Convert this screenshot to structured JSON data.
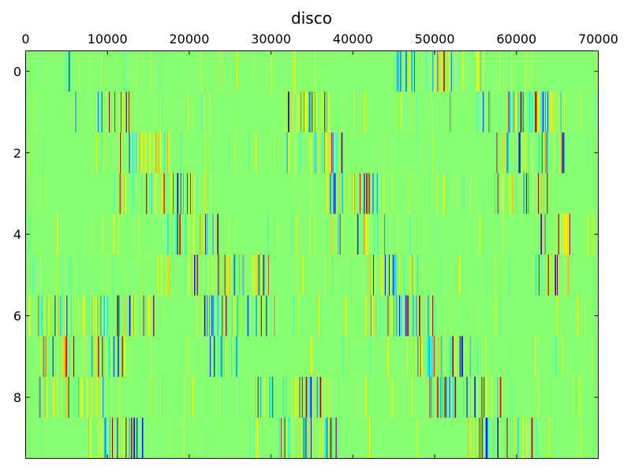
{
  "chart_data": {
    "type": "heatmap",
    "title": "disco",
    "xlabel": "",
    "ylabel": "",
    "xlim": [
      0,
      70000
    ],
    "x_tick_labels": [
      "0",
      "10000",
      "20000",
      "30000",
      "40000",
      "50000",
      "60000",
      "70000"
    ],
    "x_tick_values": [
      0,
      10000,
      20000,
      30000,
      40000,
      50000,
      60000,
      70000
    ],
    "x_axis_position": "top",
    "ylim": [
      -0.5,
      9.5
    ],
    "y_inverted": true,
    "y_tick_labels": [
      "0",
      "2",
      "4",
      "6",
      "8"
    ],
    "y_tick_values": [
      0,
      2,
      4,
      6,
      8
    ],
    "rows": 10,
    "colormap": "jet",
    "background_color": "#88ff70",
    "grid": false,
    "dense_regions": [
      {
        "row": 0,
        "ranges": [
          [
            4900,
            5600
          ],
          [
            45200,
            56200
          ]
        ]
      },
      {
        "row": 1,
        "ranges": [
          [
            5800,
            6200
          ],
          [
            8800,
            13000
          ],
          [
            31600,
            37200
          ],
          [
            51800,
            52300
          ],
          [
            54600,
            66000
          ]
        ]
      },
      {
        "row": 2,
        "ranges": [
          [
            10800,
            17600
          ],
          [
            31600,
            32200
          ],
          [
            34600,
            39000
          ],
          [
            57300,
            66000
          ]
        ]
      },
      {
        "row": 3,
        "ranges": [
          [
            11400,
            12600
          ],
          [
            14600,
            22000
          ],
          [
            36800,
            43000
          ],
          [
            57300,
            64000
          ]
        ]
      },
      {
        "row": 4,
        "ranges": [
          [
            16900,
            23600
          ],
          [
            37000,
            38500
          ],
          [
            40200,
            44000
          ],
          [
            62500,
            66500
          ]
        ]
      },
      {
        "row": 5,
        "ranges": [
          [
            16500,
            17500
          ],
          [
            19500,
            30000
          ],
          [
            42000,
            48000
          ],
          [
            62000,
            66500
          ]
        ]
      },
      {
        "row": 6,
        "ranges": [
          [
            1000,
            16000
          ],
          [
            21500,
            30800
          ],
          [
            41500,
            50000
          ]
        ]
      },
      {
        "row": 7,
        "ranges": [
          [
            1600,
            12000
          ],
          [
            22300,
            26000
          ],
          [
            47000,
            54500
          ]
        ]
      },
      {
        "row": 8,
        "ranges": [
          [
            1500,
            10000
          ],
          [
            27800,
            36500
          ],
          [
            48400,
            51000
          ],
          [
            51200,
            58000
          ]
        ]
      },
      {
        "row": 9,
        "ranges": [
          [
            7500,
            14500
          ],
          [
            27800,
            28300
          ],
          [
            30800,
            38500
          ],
          [
            53800,
            62000
          ]
        ]
      }
    ]
  }
}
